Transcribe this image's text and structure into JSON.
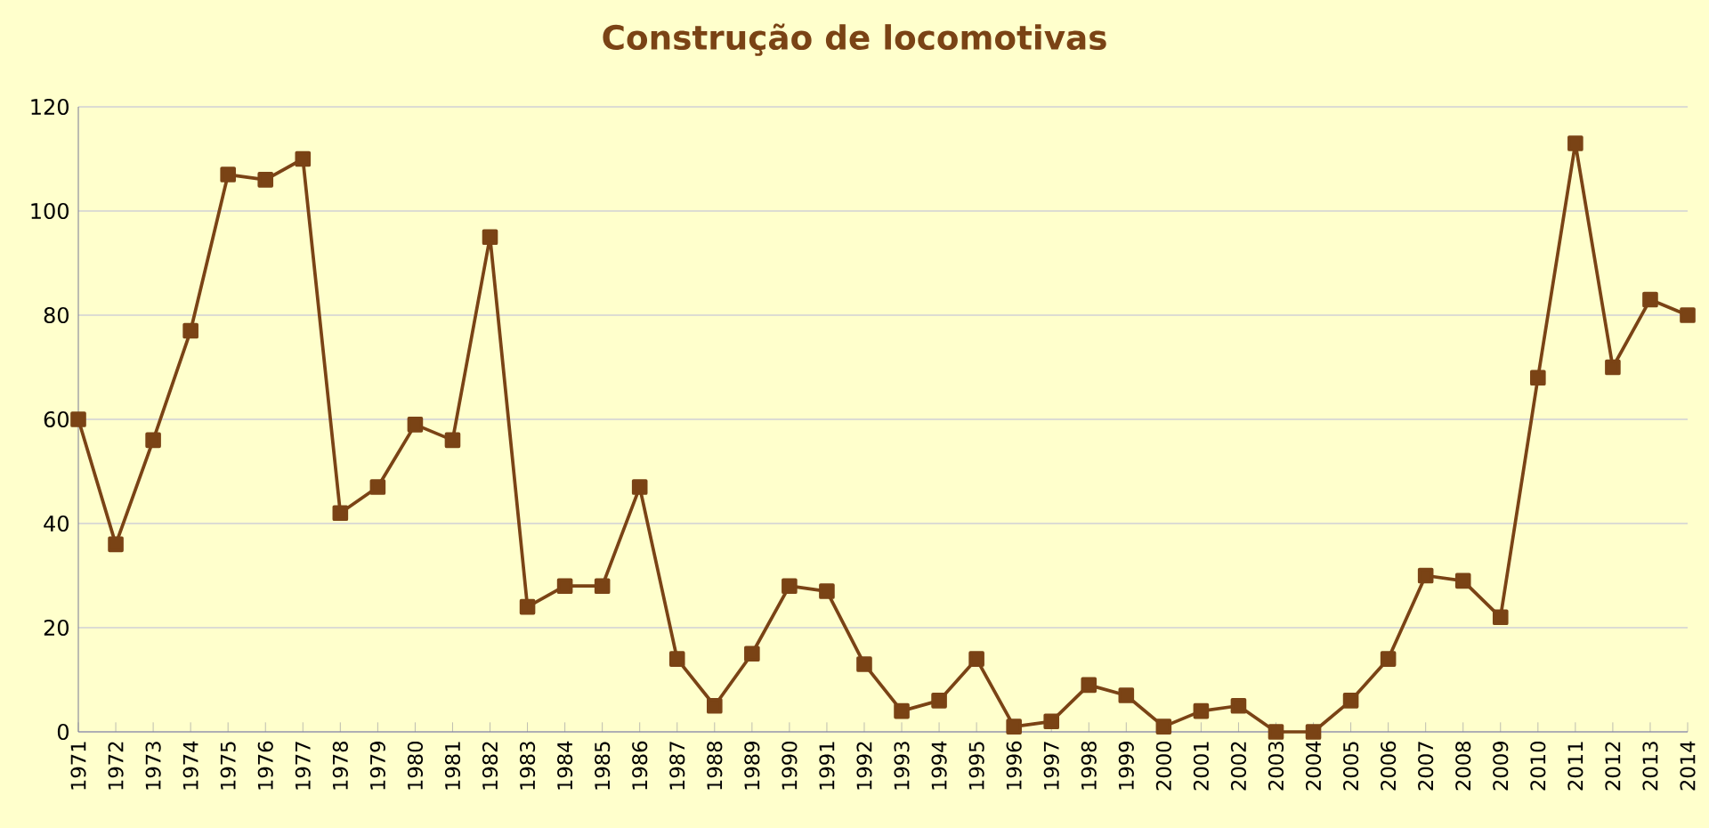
{
  "chart_data": {
    "type": "line",
    "title": "Construção de locomotivas",
    "categories": [
      "1971",
      "1972",
      "1973",
      "1974",
      "1975",
      "1976",
      "1977",
      "1978",
      "1979",
      "1980",
      "1981",
      "1982",
      "1983",
      "1984",
      "1985",
      "1986",
      "1987",
      "1988",
      "1989",
      "1990",
      "1991",
      "1992",
      "1993",
      "1994",
      "1995",
      "1996",
      "1997",
      "1998",
      "1999",
      "2000",
      "2001",
      "2002",
      "2003",
      "2004",
      "2005",
      "2006",
      "2007",
      "2008",
      "2009",
      "2010",
      "2011",
      "2012",
      "2013",
      "2014"
    ],
    "values": [
      60,
      36,
      56,
      77,
      107,
      106,
      110,
      42,
      47,
      59,
      56,
      95,
      24,
      28,
      28,
      47,
      14,
      5,
      15,
      28,
      27,
      13,
      4,
      6,
      14,
      1,
      2,
      9,
      7,
      1,
      4,
      5,
      0,
      0,
      6,
      14,
      30,
      29,
      22,
      68,
      113,
      70,
      83,
      80
    ],
    "color": "#7a4315",
    "marker": "square",
    "ylim": [
      0,
      120
    ],
    "yticks": [
      0,
      20,
      40,
      60,
      80,
      100,
      120
    ],
    "grid": "y"
  }
}
